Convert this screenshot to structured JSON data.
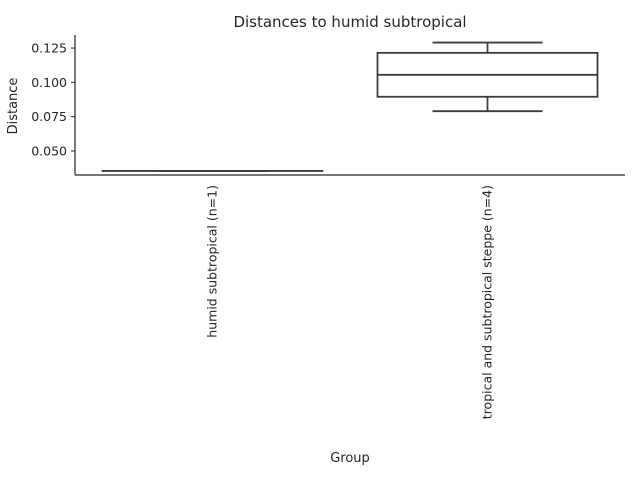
{
  "chart_data": {
    "type": "box",
    "title": "Distances to humid subtropical",
    "xlabel": "Group",
    "ylabel": "Distance",
    "ylim": [
      0.0325,
      0.1345
    ],
    "yticks": [
      {
        "value": 0.05,
        "label": "0.050"
      },
      {
        "value": 0.075,
        "label": "0.075"
      },
      {
        "value": 0.1,
        "label": "0.100"
      },
      {
        "value": 0.125,
        "label": "0.125"
      }
    ],
    "categories": [
      "humid subtropical (n=1)",
      "tropical and subtropical steppe (n=4)"
    ],
    "boxes": [
      {
        "category": "humid subtropical (n=1)",
        "whisker_low": 0.0355,
        "q1": 0.0355,
        "median": 0.0355,
        "q3": 0.0355,
        "whisker_high": 0.0355
      },
      {
        "category": "tropical and subtropical steppe (n=4)",
        "whisker_low": 0.079,
        "q1": 0.0895,
        "median": 0.1055,
        "q3": 0.1215,
        "whisker_high": 0.129
      }
    ],
    "grid": false,
    "colors": {
      "box_line": "#3d3d3d",
      "axis": "#262626",
      "text": "#262626",
      "background": "#ffffff"
    }
  }
}
